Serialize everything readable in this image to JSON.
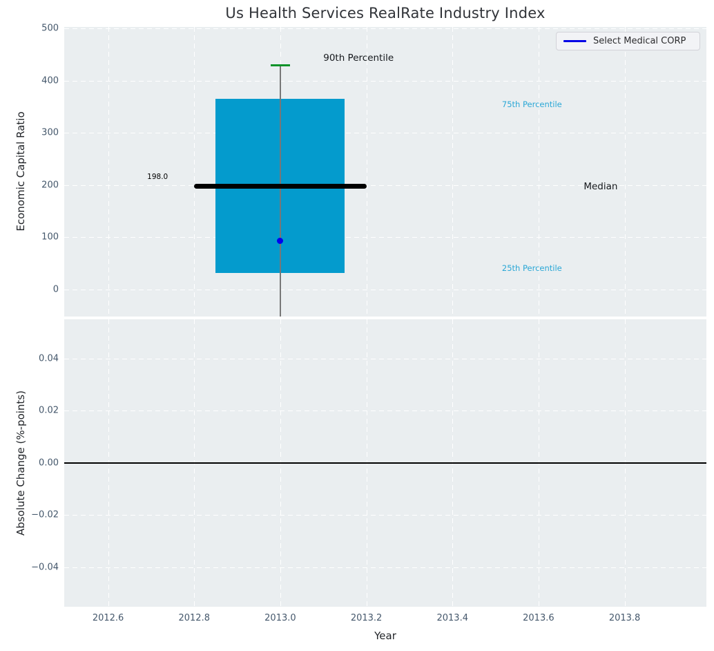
{
  "figure_title": "Us Health Services RealRate Industry Index",
  "legend": {
    "label": "Select Medical CORP",
    "line_color": "#0101e6"
  },
  "colors": {
    "plot_background": "#eaeef0",
    "grid": "#ffffff",
    "box_fill": "#049bcd",
    "median_line": "#000000",
    "whisker": "#777777",
    "percentile_cap": "#0c9329",
    "company_dot": "#0101ef",
    "cyan_text": "#2aa7d6",
    "tick_text": "#44576b"
  },
  "chart_data": [
    {
      "type": "boxplot",
      "title": "Us Health Services RealRate Industry Index",
      "ylabel": "Economic Capital Ratio",
      "xlim": [
        2012.498,
        2013.99
      ],
      "ylim": [
        -52,
        503
      ],
      "yticks": [
        0,
        100,
        200,
        300,
        400,
        500
      ],
      "ytick_labels": [
        "0",
        "100",
        "200",
        "300",
        "400",
        "500"
      ],
      "xticks": [
        2012.6,
        2012.8,
        2013.0,
        2013.2,
        2013.4,
        2013.6,
        2013.8
      ],
      "grid": true,
      "box": {
        "x_center": 2013.0,
        "box_left": 2012.85,
        "box_right": 2013.15,
        "p25": 32,
        "p75": 365,
        "median": 198,
        "p90": 430,
        "company_point": 93,
        "median_line_left": 2012.8,
        "median_line_right": 2013.2
      },
      "annotations": [
        {
          "text": "198.0",
          "x": 2012.739,
          "y": 215,
          "color": "#000000",
          "size": 10.5,
          "align": "right"
        },
        {
          "text": "90th Percentile",
          "x": 2013.1,
          "y": 443,
          "color": "#15181c",
          "size": 13.5,
          "align": "left"
        },
        {
          "text": "75th Percentile",
          "x": 2013.515,
          "y": 355,
          "color": "#2aa7d6",
          "size": 11.5,
          "align": "left"
        },
        {
          "text": "Median",
          "x": 2013.705,
          "y": 197,
          "color": "#15181c",
          "size": 13.5,
          "align": "left"
        },
        {
          "text": "25th Percentile",
          "x": 2013.515,
          "y": 41,
          "color": "#2aa7d6",
          "size": 11.5,
          "align": "left"
        }
      ],
      "legend_entries": [
        {
          "label": "Select Medical CORP",
          "color": "#0101e6",
          "style": "line"
        }
      ]
    },
    {
      "type": "line",
      "ylabel": "Absolute Change (%-points)",
      "xlabel": "Year",
      "xlim": [
        2012.498,
        2013.99
      ],
      "ylim": [
        -0.0552,
        0.055
      ],
      "yticks": [
        0.04,
        0.02,
        0.0,
        -0.02,
        -0.04
      ],
      "ytick_labels": [
        "0.04",
        "0.02",
        "0.00",
        "−0.02",
        "−0.04"
      ],
      "xticks": [
        2012.6,
        2012.8,
        2013.0,
        2013.2,
        2013.4,
        2013.6,
        2013.8
      ],
      "xtick_labels": [
        "2012.6",
        "2012.8",
        "2013.0",
        "2013.2",
        "2013.4",
        "2013.6",
        "2013.8"
      ],
      "grid": true,
      "zero_line": 0.0,
      "series": []
    }
  ]
}
